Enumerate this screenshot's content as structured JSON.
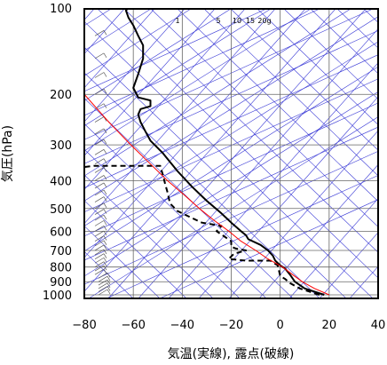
{
  "chart_data": {
    "type": "line",
    "title": "",
    "xlabel": "気温(実線), 露点(破線)",
    "ylabel": "気圧(hPa)",
    "xlim": [
      -80,
      40
    ],
    "ylim": [
      1050,
      100
    ],
    "y_scale": "log",
    "grid": true,
    "x_ticks": [
      -80,
      -60,
      -40,
      -20,
      0,
      20,
      40
    ],
    "y_ticks": [
      100,
      200,
      300,
      400,
      500,
      600,
      700,
      800,
      900,
      1000
    ],
    "mixing_ratio_labels": [
      "1",
      "5",
      "10",
      "15",
      "20g"
    ],
    "mixing_ratio_values": [
      1,
      5,
      10,
      15,
      20
    ],
    "series": [
      {
        "name": "",
        "style": "solid",
        "color": "#000000",
        "points": [
          [
            18,
            1000
          ],
          [
            10,
            950
          ],
          [
            6,
            900
          ],
          [
            4,
            850
          ],
          [
            2,
            810
          ],
          [
            0,
            790
          ],
          [
            -2,
            760
          ],
          [
            -3,
            730
          ],
          [
            -5,
            700
          ],
          [
            -8,
            670
          ],
          [
            -13,
            640
          ],
          [
            -14,
            620
          ],
          [
            -16,
            600
          ],
          [
            -20,
            560
          ],
          [
            -24,
            520
          ],
          [
            -30,
            470
          ],
          [
            -36,
            420
          ],
          [
            -42,
            370
          ],
          [
            -48,
            320
          ],
          [
            -53,
            290
          ],
          [
            -55,
            270
          ],
          [
            -57,
            250
          ],
          [
            -58,
            235
          ],
          [
            -57,
            225
          ],
          [
            -53,
            220
          ],
          [
            -53,
            210
          ],
          [
            -58,
            205
          ],
          [
            -60,
            190
          ],
          [
            -58,
            170
          ],
          [
            -56,
            150
          ],
          [
            -56,
            135
          ],
          [
            -58,
            125
          ],
          [
            -60,
            115
          ],
          [
            -62,
            108
          ],
          [
            -63,
            102
          ],
          [
            -62,
            100
          ]
        ]
      },
      {
        "name": "",
        "style": "dashed",
        "color": "#000000",
        "points": [
          [
            16,
            1000
          ],
          [
            8,
            950
          ],
          [
            4,
            910
          ],
          [
            2,
            880
          ],
          [
            0,
            860
          ],
          [
            -1,
            790
          ],
          [
            -4,
            760
          ],
          [
            -14,
            760
          ],
          [
            -21,
            750
          ],
          [
            -19,
            720
          ],
          [
            -14,
            700
          ],
          [
            -18,
            690
          ],
          [
            -20,
            680
          ],
          [
            -20,
            650
          ],
          [
            -26,
            600
          ],
          [
            -24,
            575
          ],
          [
            -32,
            560
          ],
          [
            -38,
            530
          ],
          [
            -42,
            510
          ],
          [
            -45,
            480
          ],
          [
            -46,
            440
          ],
          [
            -47,
            410
          ],
          [
            -48,
            380
          ],
          [
            -49,
            355
          ],
          [
            -76,
            355
          ],
          [
            -82,
            360
          ]
        ]
      },
      {
        "name": "",
        "style": "solid",
        "color": "#ff0000",
        "points": [
          [
            20,
            1000
          ],
          [
            14,
            950
          ],
          [
            9,
            900
          ],
          [
            5,
            850
          ],
          [
            1,
            800
          ],
          [
            -5,
            750
          ],
          [
            -10,
            700
          ],
          [
            -16,
            650
          ],
          [
            -21,
            600
          ],
          [
            -27,
            550
          ],
          [
            -33,
            500
          ],
          [
            -39,
            450
          ],
          [
            -46,
            400
          ],
          [
            -53,
            350
          ],
          [
            -61,
            300
          ],
          [
            -70,
            250
          ],
          [
            -80,
            200
          ]
        ]
      }
    ]
  }
}
